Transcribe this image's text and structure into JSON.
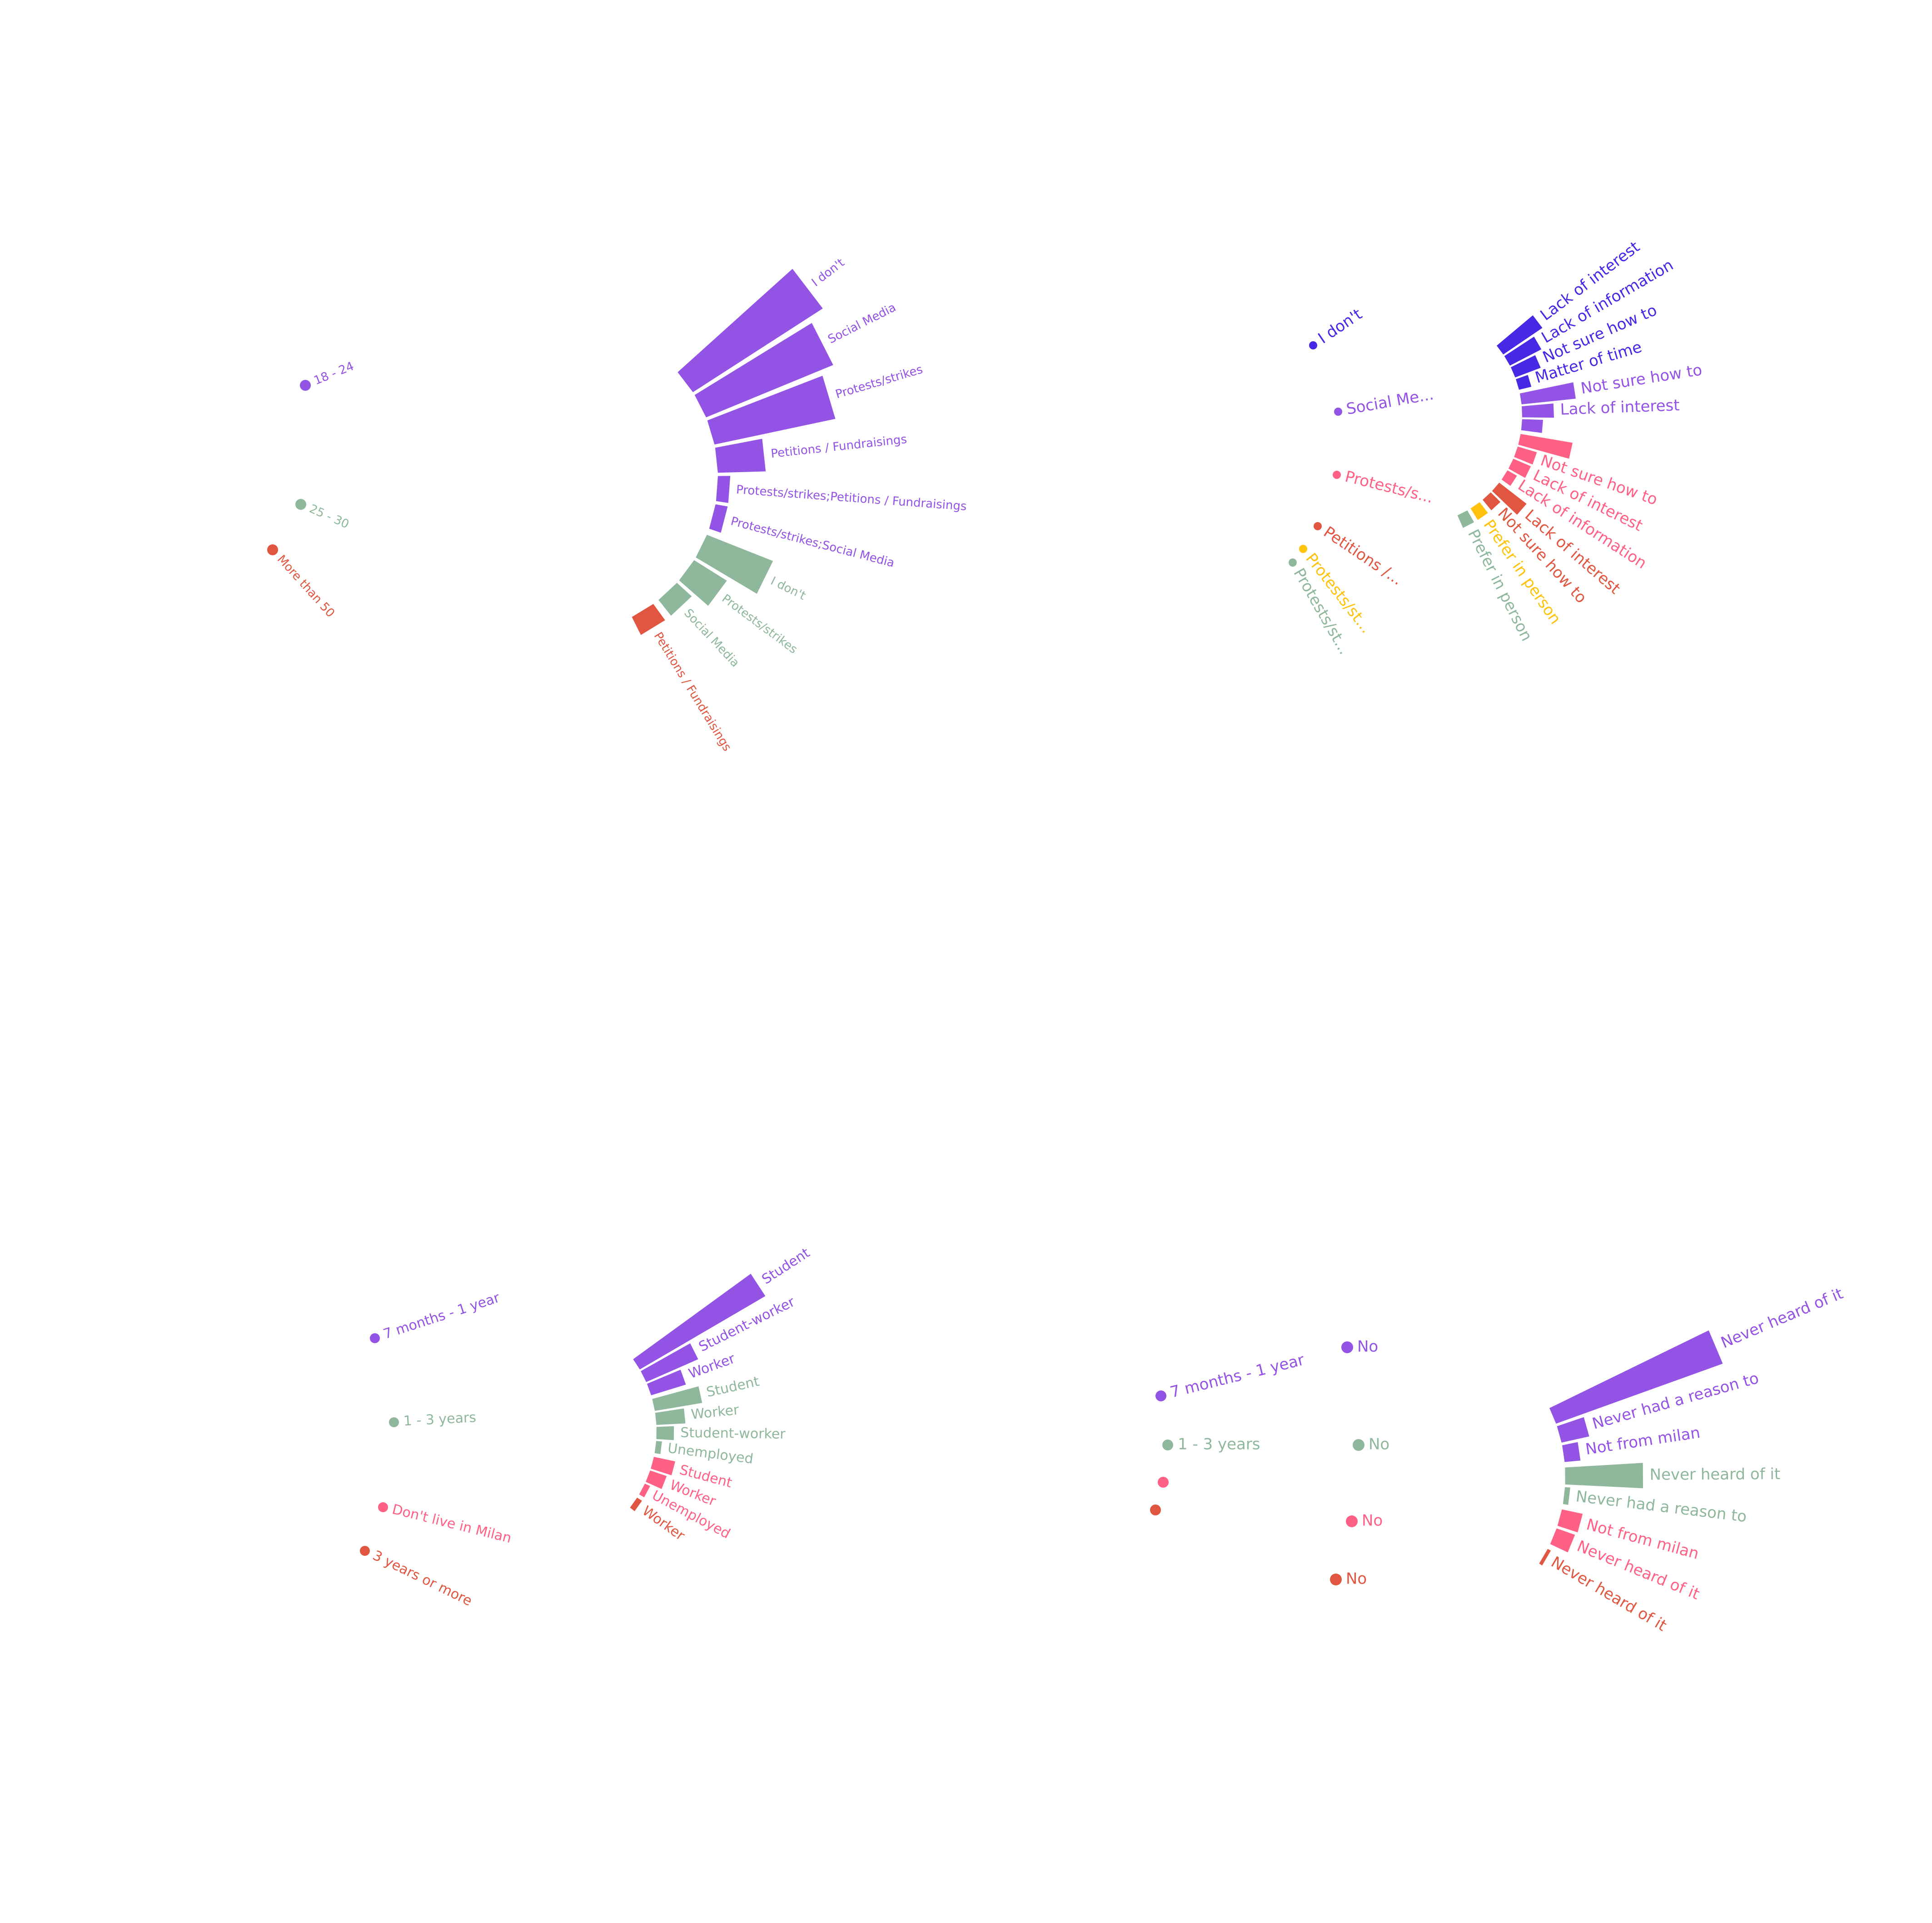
{
  "colors": {
    "purple": "#9353E5",
    "green": "#8FB79C",
    "red": "#E15640",
    "pink": "#FF6185",
    "blue": "#4529E5",
    "yellow": "#FFC20F"
  },
  "chart_data": [
    {
      "type": "radial-bar",
      "title": "",
      "groups": [
        {
          "label": "18 - 24",
          "color": "#9353E5",
          "bars": [
            {
              "label": "I don't",
              "value": 100
            },
            {
              "label": "Social Media",
              "value": 89
            },
            {
              "label": "Protests/strikes",
              "value": 80
            },
            {
              "label": "Petitions / Fundraisings",
              "value": 31
            },
            {
              "label": "Protests/strikes;Petitions / Fundraisings",
              "value": 8
            },
            {
              "label": "Protests/strikes;Social Media",
              "value": 8
            }
          ]
        },
        {
          "label": "25 - 30",
          "color": "#8FB79C",
          "bars": [
            {
              "label": "I don't",
              "value": 46
            },
            {
              "label": "Protests/strikes",
              "value": 25
            },
            {
              "label": "Social Media",
              "value": 13
            }
          ]
        },
        {
          "label": "More than 50",
          "color": "#E15640",
          "bars": [
            {
              "label": "Petitions / Fundraisings",
              "value": 13
            }
          ]
        }
      ]
    },
    {
      "type": "radial-bar",
      "title": "",
      "groups": [
        {
          "label": "I don't",
          "color": "#4529E5",
          "bars": [
            {
              "label": "Lack of interest",
              "value": 52
            },
            {
              "label": "Lack of information",
              "value": 39
            },
            {
              "label": "Not sure how to",
              "value": 30
            },
            {
              "label": "Matter of time",
              "value": 14
            }
          ]
        },
        {
          "label": "Social Me...",
          "color": "#9353E5",
          "bars": [
            {
              "label": "Not sure how to",
              "value": 60
            },
            {
              "label": "Lack of interest",
              "value": 35
            },
            {
              "label": "",
              "value": 23
            }
          ]
        },
        {
          "label": "Protests/s...",
          "color": "#FF6185",
          "bars": [
            {
              "label": "",
              "value": 58
            },
            {
              "label": "Not sure how to",
              "value": 22
            },
            {
              "label": "Lack of interest",
              "value": 21
            },
            {
              "label": "Lack of information",
              "value": 12
            }
          ]
        },
        {
          "label": "Petitions /...",
          "color": "#E15640",
          "bars": [
            {
              "label": "Lack of interest",
              "value": 38
            },
            {
              "label": "Not sure how to",
              "value": 15
            }
          ]
        },
        {
          "label": "Protests/st...",
          "color": "#FFC20F",
          "bars": [
            {
              "label": "Prefer in person",
              "value": 15
            }
          ]
        },
        {
          "label": "Protests/st...",
          "color": "#8FB79C",
          "bars": [
            {
              "label": "Prefer in person",
              "value": 15
            }
          ]
        }
      ]
    },
    {
      "type": "radial-bar",
      "title": "",
      "groups": [
        {
          "label": "7 months - 1 year",
          "color": "#9353E5",
          "bars": [
            {
              "label": "Student",
              "value": 100
            },
            {
              "label": "Student-worker",
              "value": 39
            },
            {
              "label": "Worker",
              "value": 25
            }
          ]
        },
        {
          "label": "1 - 3 years",
          "color": "#8FB79C",
          "bars": [
            {
              "label": "Student",
              "value": 33
            },
            {
              "label": "Worker",
              "value": 20
            },
            {
              "label": "Student-worker",
              "value": 12
            },
            {
              "label": "Unemployed",
              "value": 4
            }
          ]
        },
        {
          "label": "Don't live in Milan",
          "color": "#FF6185",
          "bars": [
            {
              "label": "Student",
              "value": 15
            },
            {
              "label": "Worker",
              "value": 12
            },
            {
              "label": "Unemployed",
              "value": 4
            }
          ]
        },
        {
          "label": "3 years or more",
          "color": "#E15640",
          "bars": [
            {
              "label": "Worker",
              "value": 4
            }
          ]
        }
      ]
    },
    {
      "type": "radial-bar",
      "title": "",
      "groups": [
        {
          "label": "7 months - 1 year",
          "sublabel": "No",
          "color": "#9353E5",
          "bars": [
            {
              "label": "Never heard of it",
              "value": 100
            },
            {
              "label": "Never had a reason to",
              "value": 16
            },
            {
              "label": "Not from milan",
              "value": 9
            }
          ]
        },
        {
          "label": "1 - 3 years",
          "sublabel": "No",
          "color": "#8FB79C",
          "bars": [
            {
              "label": "Never heard of it",
              "value": 44
            },
            {
              "label": "Never had a reason to",
              "value": 3
            }
          ]
        },
        {
          "label": "",
          "sublabel": "No",
          "color": "#FF6185",
          "bars": [
            {
              "label": "Not from milan",
              "value": 12
            },
            {
              "label": "Never heard of it",
              "value": 11
            }
          ]
        },
        {
          "label": "",
          "sublabel": "No",
          "color": "#E15640",
          "bars": [
            {
              "label": "Never heard of it",
              "value": 2
            }
          ]
        }
      ]
    }
  ]
}
